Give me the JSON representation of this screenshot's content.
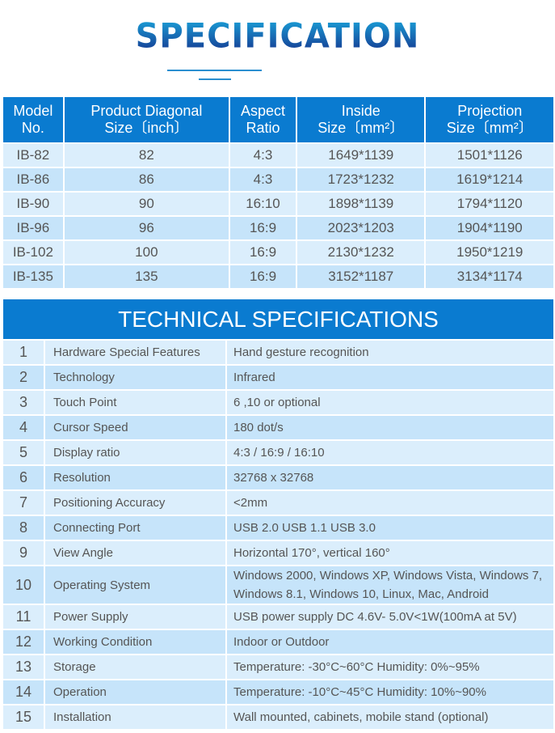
{
  "title": "SPECIFICATION",
  "size_table": {
    "headers": [
      [
        "Model",
        "No."
      ],
      [
        "Product Diagonal",
        "Size〔inch〕"
      ],
      [
        "Aspect",
        "Ratio"
      ],
      [
        "Inside",
        "Size〔mm²〕"
      ],
      [
        "Projection",
        "Size〔mm²〕"
      ]
    ],
    "rows": [
      [
        "IB-82",
        "82",
        "4:3",
        "1649*1139",
        "1501*1126"
      ],
      [
        "IB-86",
        "86",
        "4:3",
        "1723*1232",
        "1619*1214"
      ],
      [
        "IB-90",
        "90",
        "16:10",
        "1898*1139",
        "1794*1120"
      ],
      [
        "IB-96",
        "96",
        "16:9",
        "2023*1203",
        "1904*1190"
      ],
      [
        "IB-102",
        "100",
        "16:9",
        "2130*1232",
        "1950*1219"
      ],
      [
        "IB-135",
        "135",
        "16:9",
        "3152*1187",
        "3134*1174"
      ]
    ]
  },
  "tech": {
    "title": "TECHNICAL SPECIFICATIONS",
    "rows": [
      [
        "1",
        "Hardware Special Features",
        "Hand gesture recognition"
      ],
      [
        "2",
        "Technology",
        "Infrared"
      ],
      [
        "3",
        "Touch Point",
        "6 ,10 or optional"
      ],
      [
        "4",
        "Cursor Speed",
        "180 dot/s"
      ],
      [
        "5",
        "Display ratio",
        "4:3 / 16:9 / 16:10"
      ],
      [
        "6",
        "Resolution",
        "32768 x 32768"
      ],
      [
        "7",
        "Positioning Accuracy",
        "<2mm"
      ],
      [
        "8",
        "Connecting Port",
        "USB 2.0  USB 1.1  USB 3.0"
      ],
      [
        "9",
        "View Angle",
        " Horizontal 170°, vertical 160°"
      ],
      [
        "10",
        "Operating System",
        "Windows 2000, Windows XP, Windows Vista, Windows 7, Windows 8.1, Windows 10, Linux, Mac, Android"
      ],
      [
        "11",
        "Power Supply",
        "USB power supply DC 4.6V- 5.0V<1W(100mA at 5V)"
      ],
      [
        "12",
        "Working Condition",
        "Indoor or Outdoor"
      ],
      [
        "13",
        "Storage",
        "Temperature: -30°C~60°C  Humidity: 0%~95%"
      ],
      [
        "14",
        "Operation",
        "Temperature: -10°C~45°C  Humidity: 10%~90%"
      ],
      [
        "15",
        "Installation",
        "Wall mounted, cabinets, mobile stand (optional)"
      ]
    ]
  },
  "colors": {
    "header_blue": "#0a7bd0",
    "row_light": "#dbeefc",
    "row_dark": "#c6e4fa",
    "text": "#555555"
  }
}
